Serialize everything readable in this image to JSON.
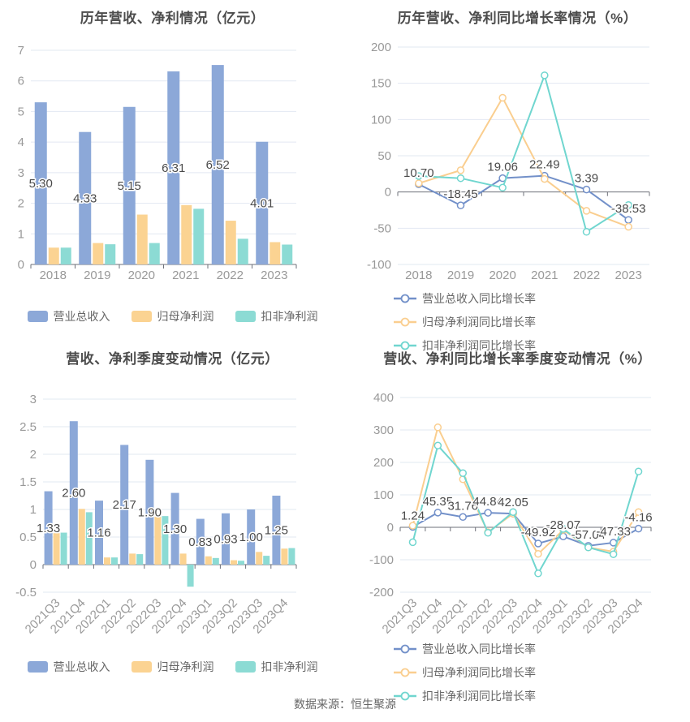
{
  "footer": {
    "source": "数据来源：恒生聚源"
  },
  "colors": {
    "revenue_bar": "#8CA8D8",
    "net_profit_bar": "#FBD392",
    "non_gaap_bar": "#8CDBD4",
    "revenue_line": "#7290C9",
    "net_profit_line": "#FACE8F",
    "non_gaap_line": "#70D6CF",
    "grid": "#E2E8F2",
    "axis_line": "#6E7079",
    "axis_text": "#999999",
    "value_label": "#4A4A4A",
    "title_text": "#4C4C4C",
    "legend_text": "#666666"
  },
  "chart_data": [
    {
      "type": "bar",
      "title": "历年营收、净利情况（亿元）",
      "categories": [
        "2018",
        "2019",
        "2020",
        "2021",
        "2022",
        "2023"
      ],
      "series": [
        {
          "name": "营业总收入",
          "color_key": "revenue_bar",
          "values": [
            5.3,
            4.33,
            5.15,
            6.31,
            6.52,
            4.01
          ],
          "labels": [
            "5.30",
            "4.33",
            "5.15",
            "6.31",
            "6.52",
            "4.01"
          ]
        },
        {
          "name": "归母净利润",
          "color_key": "net_profit_bar",
          "values": [
            0.55,
            0.7,
            1.63,
            1.94,
            1.43,
            0.73
          ]
        },
        {
          "name": "扣非净利润",
          "color_key": "non_gaap_bar",
          "values": [
            0.55,
            0.66,
            0.7,
            1.82,
            0.84,
            0.65
          ]
        }
      ],
      "ylim": [
        0,
        7
      ],
      "ystep": 1,
      "yticks": [
        "7",
        "6",
        "5",
        "4",
        "3",
        "2",
        "1",
        "0"
      ],
      "grid_on": true,
      "legend_position": "bottom-center",
      "rotate_x_labels": false
    },
    {
      "type": "line",
      "title": "历年营收、净利同比增长率情况（%）",
      "categories": [
        "2018",
        "2019",
        "2020",
        "2021",
        "2022",
        "2023"
      ],
      "series": [
        {
          "name": "营业总收入同比增长率",
          "color_key": "revenue_line",
          "values": [
            10.7,
            -18.45,
            19.06,
            22.49,
            3.39,
            -38.53
          ],
          "labels": [
            "10.70",
            "-18.45",
            "19.06",
            "22.49",
            "3.39",
            "-38.53"
          ]
        },
        {
          "name": "归母净利润同比增长率",
          "color_key": "net_profit_line",
          "values": [
            12,
            30,
            130,
            18,
            -26,
            -48
          ]
        },
        {
          "name": "扣非净利润同比增长率",
          "color_key": "non_gaap_line",
          "values": [
            22,
            19,
            6,
            161,
            -55,
            -18
          ]
        }
      ],
      "ylim": [
        -100,
        200
      ],
      "ystep": 50,
      "yticks": [
        "200",
        "150",
        "100",
        "50",
        "0",
        "-50",
        "-100"
      ],
      "grid_on": true,
      "legend_position": "bottom-left-wrap",
      "rotate_x_labels": false
    },
    {
      "type": "bar",
      "title": "营收、净利季度变动情况（亿元）",
      "categories": [
        "2021Q3",
        "2021Q4",
        "2022Q1",
        "2022Q2",
        "2022Q3",
        "2022Q4",
        "2023Q1",
        "2023Q2",
        "2023Q3",
        "2023Q4"
      ],
      "series": [
        {
          "name": "营业总收入",
          "color_key": "revenue_bar",
          "values": [
            1.33,
            2.6,
            1.16,
            2.17,
            1.9,
            1.3,
            0.83,
            0.93,
            1.0,
            1.25
          ],
          "labels": [
            "1.33",
            "2.60",
            "1.16",
            "2.17",
            "1.90",
            "1.30",
            "0.83",
            "0.93",
            "1.00",
            "1.25"
          ]
        },
        {
          "name": "归母净利润",
          "color_key": "net_profit_bar",
          "values": [
            0.57,
            1.01,
            0.13,
            0.2,
            0.87,
            0.2,
            0.15,
            0.08,
            0.23,
            0.29
          ]
        },
        {
          "name": "扣非净利润",
          "color_key": "non_gaap_bar",
          "values": [
            0.58,
            0.95,
            0.13,
            0.19,
            0.88,
            -0.4,
            0.12,
            0.07,
            0.16,
            0.3
          ]
        }
      ],
      "ylim": [
        -0.5,
        3
      ],
      "ystep": 0.5,
      "yticks": [
        "3",
        "2.5",
        "2",
        "1.5",
        "1",
        "0.5",
        "0",
        "-0.5"
      ],
      "grid_on": true,
      "legend_position": "bottom-center",
      "rotate_x_labels": true
    },
    {
      "type": "line",
      "title": "营收、净利同比增长率季度变动情况（%）",
      "categories": [
        "2021Q3",
        "2021Q4",
        "2022Q1",
        "2022Q2",
        "2022Q3",
        "2022Q4",
        "2023Q1",
        "2023Q2",
        "2023Q3",
        "2023Q4"
      ],
      "series": [
        {
          "name": "营业总收入同比增长率",
          "color_key": "revenue_line",
          "values": [
            1.24,
            45.35,
            31.76,
            44.84,
            42.05,
            -49.92,
            -28.07,
            -57.04,
            -47.33,
            -4.16
          ],
          "labels": [
            "1.24",
            "45.35",
            "31.76",
            "44.84",
            "42.05",
            "-49.92",
            "-28.07",
            "-57.04",
            "-47.33",
            "-4.16"
          ]
        },
        {
          "name": "归母净利润同比增长率",
          "color_key": "net_profit_line",
          "values": [
            5,
            308,
            148,
            -15,
            42,
            -82,
            -8,
            -62,
            -75,
            47
          ]
        },
        {
          "name": "扣非净利润同比增长率",
          "color_key": "non_gaap_line",
          "values": [
            -46,
            252,
            167,
            -17,
            47,
            -142,
            -5,
            -62,
            -83,
            172
          ]
        }
      ],
      "ylim": [
        -200,
        400
      ],
      "ystep": 100,
      "yticks": [
        "400",
        "300",
        "200",
        "100",
        "0",
        "-100",
        "-200"
      ],
      "grid_on": true,
      "legend_position": "bottom-left-wrap",
      "rotate_x_labels": true
    }
  ]
}
